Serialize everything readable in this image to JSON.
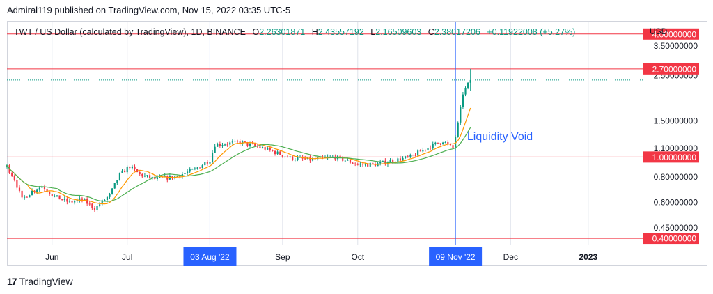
{
  "header": {
    "publisher_line": "Admiral119 published on TradingView.com, Nov 15, 2022 03:35 UTC-5"
  },
  "legend": {
    "symbol": "TWT / US Dollar (calculated by TradingView), 1D, BINANCE",
    "open_key": "O",
    "open": "2.26301871",
    "high_key": "H",
    "high": "2.43557192",
    "low_key": "L",
    "low": "2.16509603",
    "close_key": "C",
    "close": "2.38017206",
    "change": "+0.11922008 (+5.27%)"
  },
  "currency": "USD",
  "footer": {
    "brand": "TradingView"
  },
  "colors": {
    "up": "#089981",
    "down": "#f23645",
    "level": "#f23645",
    "marker": "#2962ff",
    "ma_fast": "#ff9800",
    "ma_slow": "#4caf50",
    "annotation": "#2962ff"
  },
  "chart_data": {
    "type": "candlestick",
    "y_scale": "log",
    "ylim": [
      0.37,
      4.6
    ],
    "y_ticks": [
      {
        "value": 3.5,
        "label": "3.50000000"
      },
      {
        "value": 2.5,
        "label": "2.50000000"
      },
      {
        "value": 1.5,
        "label": "1.50000000"
      },
      {
        "value": 1.1,
        "label": "1.10000000"
      },
      {
        "value": 0.8,
        "label": "0.80000000"
      },
      {
        "value": 0.6,
        "label": "0.60000000"
      },
      {
        "value": 0.45,
        "label": "0.45000000"
      }
    ],
    "x_range": [
      "2022-05-14",
      "2023-01-23"
    ],
    "x_ticks": [
      {
        "date": "2022-06-01",
        "label": "Jun"
      },
      {
        "date": "2022-07-01",
        "label": "Jul"
      },
      {
        "date": "2022-09-01",
        "label": "Sep"
      },
      {
        "date": "2022-10-01",
        "label": "Oct"
      },
      {
        "date": "2022-12-01",
        "label": "Dec"
      },
      {
        "date": "2023-01-01",
        "label": "2023",
        "bold": true
      }
    ],
    "horizontal_levels": [
      {
        "value": 4.0,
        "label": "4.00000000"
      },
      {
        "value": 2.7,
        "label": "2.70000000"
      },
      {
        "value": 1.0,
        "label": "1.00000000"
      },
      {
        "value": 0.4,
        "label": "0.40000000"
      }
    ],
    "vertical_markers": [
      {
        "date": "2022-08-03",
        "label": "03 Aug '22"
      },
      {
        "date": "2022-11-09",
        "label": "09 Nov '22"
      }
    ],
    "last_price": 2.38,
    "annotation": {
      "text": "Liquidity Void",
      "date": "2022-11-12",
      "value": 1.27
    },
    "moving_averages": [
      {
        "name": "fast",
        "period": 9
      },
      {
        "name": "slow",
        "period": 21
      }
    ],
    "anchors": [
      [
        "2022-05-14",
        0.9
      ],
      [
        "2022-05-17",
        0.78
      ],
      [
        "2022-05-20",
        0.62
      ],
      [
        "2022-05-24",
        0.68
      ],
      [
        "2022-05-28",
        0.72
      ],
      [
        "2022-06-02",
        0.64
      ],
      [
        "2022-06-08",
        0.6
      ],
      [
        "2022-06-13",
        0.62
      ],
      [
        "2022-06-18",
        0.56
      ],
      [
        "2022-06-24",
        0.65
      ],
      [
        "2022-06-28",
        0.82
      ],
      [
        "2022-07-02",
        0.9
      ],
      [
        "2022-07-06",
        0.82
      ],
      [
        "2022-07-12",
        0.78
      ],
      [
        "2022-07-20",
        0.8
      ],
      [
        "2022-07-28",
        0.87
      ],
      [
        "2022-08-03",
        0.97
      ],
      [
        "2022-08-05",
        1.15
      ],
      [
        "2022-08-15",
        1.18
      ],
      [
        "2022-08-25",
        1.1
      ],
      [
        "2022-09-04",
        0.99
      ],
      [
        "2022-09-12",
        0.97
      ],
      [
        "2022-09-22",
        1.0
      ],
      [
        "2022-10-01",
        0.92
      ],
      [
        "2022-10-08",
        0.92
      ],
      [
        "2022-10-15",
        0.96
      ],
      [
        "2022-10-22",
        1.0
      ],
      [
        "2022-10-28",
        1.1
      ],
      [
        "2022-11-04",
        1.2
      ],
      [
        "2022-11-08",
        1.1
      ],
      [
        "2022-11-10",
        1.45
      ],
      [
        "2022-11-12",
        2.05
      ],
      [
        "2022-11-15",
        2.38
      ]
    ]
  }
}
